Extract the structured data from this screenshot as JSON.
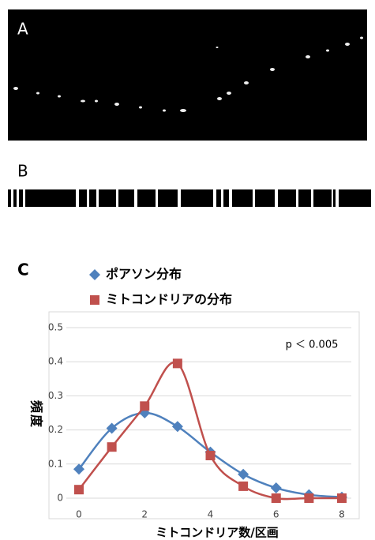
{
  "panel_labels": [
    "A",
    "B",
    "C"
  ],
  "chart_data": {
    "type": "line",
    "annotation": "p ＜ 0.005",
    "x_label": "ミトコンドリア数/区画",
    "y_label": "頻度",
    "x": [
      0,
      1,
      2,
      3,
      4,
      5,
      6,
      7,
      8
    ],
    "xlim": [
      0,
      8
    ],
    "xticks": [
      0,
      2,
      4,
      6,
      8
    ],
    "ylim": [
      0,
      0.5
    ],
    "yticks": [
      0,
      0.1,
      0.2,
      0.3,
      0.4,
      0.5
    ],
    "series": [
      {
        "name": "ポアソン分布",
        "color": "#4f81bd",
        "marker": "diamond",
        "values": [
          0.085,
          0.205,
          0.25,
          0.21,
          0.135,
          0.07,
          0.03,
          0.01,
          0.003
        ]
      },
      {
        "name": "ミトコンドリアの分布",
        "color": "#c0504d",
        "marker": "square",
        "values": [
          0.025,
          0.15,
          0.27,
          0.395,
          0.125,
          0.035,
          0,
          0,
          0
        ]
      }
    ]
  }
}
